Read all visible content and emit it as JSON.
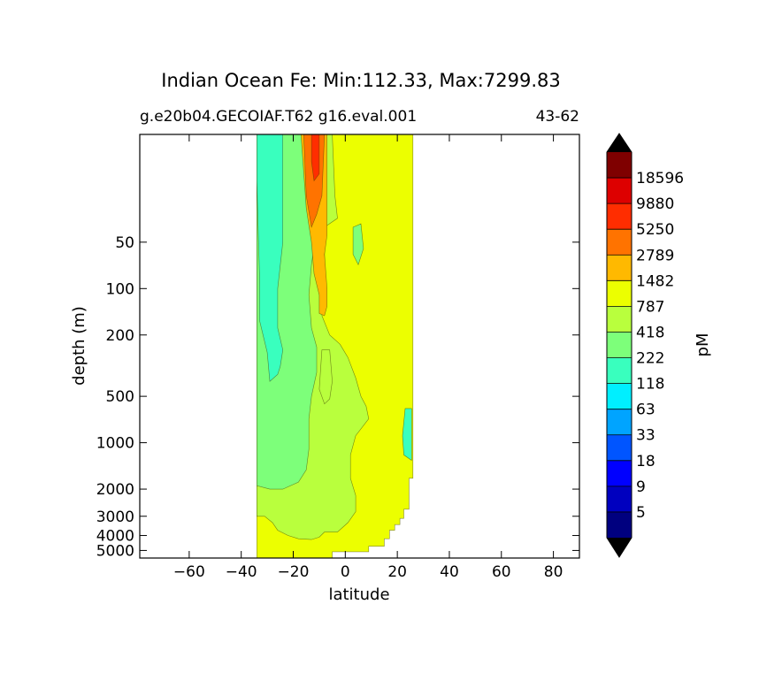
{
  "chart_data": {
    "type": "filled-contour",
    "title": "Indian Ocean Fe: Min:112.33, Max:7299.83",
    "subtitle_left": "g.e20b04.GECOIAF.T62 g16.eval.001",
    "subtitle_right": "43-62",
    "xlabel": "latitude",
    "ylabel": "depth (m)",
    "xlim": [
      -79,
      90
    ],
    "ylim": [
      5600,
      10
    ],
    "x_ticks": [
      {
        "value": -60,
        "label": "−60"
      },
      {
        "value": -40,
        "label": "−40"
      },
      {
        "value": -20,
        "label": "−20"
      },
      {
        "value": 0,
        "label": "0"
      },
      {
        "value": 20,
        "label": "20"
      },
      {
        "value": 40,
        "label": "40"
      },
      {
        "value": 60,
        "label": "60"
      },
      {
        "value": 80,
        "label": "80"
      }
    ],
    "y_ticks": [
      {
        "value": 50,
        "label": "50"
      },
      {
        "value": 100,
        "label": "100"
      },
      {
        "value": 200,
        "label": "200"
      },
      {
        "value": 500,
        "label": "500"
      },
      {
        "value": 1000,
        "label": "1000"
      },
      {
        "value": 2000,
        "label": "2000"
      },
      {
        "value": 3000,
        "label": "3000"
      },
      {
        "value": 4000,
        "label": "4000"
      },
      {
        "value": 5000,
        "label": "5000"
      }
    ],
    "colorbar": {
      "label": "pM",
      "levels": [
        5,
        9,
        18,
        33,
        63,
        118,
        222,
        418,
        787,
        1482,
        2789,
        5250,
        9880,
        18596
      ],
      "colors": [
        "#00007f",
        "#0000bf",
        "#0000ff",
        "#0055ff",
        "#00a4ff",
        "#00efff",
        "#39ffbe",
        "#7dff7a",
        "#b9ff3d",
        "#ecff00",
        "#ffb900",
        "#ff7300",
        "#ff2d00",
        "#dd0000",
        "#7f0000"
      ],
      "under_color": "#000000",
      "over_color": "#000000"
    },
    "regions": [
      {
        "name": "yellow-787-1482",
        "color_index": 9,
        "poly": [
          [
            -34,
            10
          ],
          [
            26,
            10
          ],
          [
            26,
            1700
          ],
          [
            24.5,
            1700
          ],
          [
            24.5,
            2700
          ],
          [
            22.5,
            2700
          ],
          [
            22.5,
            3100
          ],
          [
            21,
            3100
          ],
          [
            21,
            3400
          ],
          [
            19,
            3400
          ],
          [
            19,
            3700
          ],
          [
            17,
            3700
          ],
          [
            17,
            4200
          ],
          [
            15,
            4200
          ],
          [
            15,
            4700
          ],
          [
            9,
            4700
          ],
          [
            9,
            5100
          ],
          [
            -5,
            5100
          ],
          [
            -5,
            5600
          ],
          [
            -34,
            5600
          ]
        ]
      },
      {
        "name": "lightgreen-418-787",
        "color_index": 8,
        "poly": [
          [
            -34,
            10
          ],
          [
            -5,
            10
          ],
          [
            -4,
            25
          ],
          [
            -3,
            35
          ],
          [
            -8,
            40
          ],
          [
            -8,
            90
          ],
          [
            -9,
            150
          ],
          [
            -6,
            200
          ],
          [
            -2,
            230
          ],
          [
            1,
            280
          ],
          [
            4,
            380
          ],
          [
            6,
            500
          ],
          [
            8,
            580
          ],
          [
            9,
            700
          ],
          [
            4,
            900
          ],
          [
            2,
            1200
          ],
          [
            2,
            1700
          ],
          [
            4,
            2200
          ],
          [
            4,
            2800
          ],
          [
            1,
            3300
          ],
          [
            -3,
            3800
          ],
          [
            -8,
            3800
          ],
          [
            -10,
            4100
          ],
          [
            -13,
            4250
          ],
          [
            -18,
            4200
          ],
          [
            -22,
            4000
          ],
          [
            -26,
            3700
          ],
          [
            -28,
            3300
          ],
          [
            -31,
            3000
          ],
          [
            -34,
            3000
          ]
        ]
      },
      {
        "name": "green-222-418",
        "color_index": 7,
        "poly": [
          [
            -34,
            10
          ],
          [
            -12,
            10
          ],
          [
            -11,
            40
          ],
          [
            -13,
            70
          ],
          [
            -14,
            110
          ],
          [
            -13,
            180
          ],
          [
            -11,
            240
          ],
          [
            -11,
            350
          ],
          [
            -13,
            500
          ],
          [
            -14,
            700
          ],
          [
            -14,
            1100
          ],
          [
            -15,
            1500
          ],
          [
            -18,
            1800
          ],
          [
            -24,
            2000
          ],
          [
            -29,
            2000
          ],
          [
            -34,
            1900
          ]
        ]
      },
      {
        "name": "aqua-118-222",
        "color_index": 6,
        "poly": [
          [
            -34,
            10
          ],
          [
            -24,
            10
          ],
          [
            -24,
            50
          ],
          [
            -26,
            100
          ],
          [
            -26,
            180
          ],
          [
            -24,
            250
          ],
          [
            -25,
            320
          ],
          [
            -26,
            360
          ],
          [
            -29,
            400
          ],
          [
            -30,
            260
          ],
          [
            -33,
            160
          ],
          [
            -33,
            80
          ],
          [
            -34,
            20
          ]
        ]
      },
      {
        "name": "aqua-east-patch",
        "color_index": 6,
        "poly": [
          [
            23,
            600
          ],
          [
            25.5,
            600
          ],
          [
            25.5,
            1300
          ],
          [
            22.5,
            1200
          ],
          [
            22,
            900
          ]
        ]
      },
      {
        "name": "green-east-patch",
        "color_index": 7,
        "poly": [
          [
            3,
            40
          ],
          [
            6,
            38
          ],
          [
            7,
            55
          ],
          [
            5,
            70
          ],
          [
            3,
            60
          ]
        ]
      },
      {
        "name": "green-plume-1",
        "color_index": 8,
        "poly": [
          [
            -9,
            250
          ],
          [
            -6,
            250
          ],
          [
            -5,
            400
          ],
          [
            -6,
            520
          ],
          [
            -8,
            560
          ],
          [
            -10,
            450
          ]
        ]
      },
      {
        "name": "orange-1482-2789",
        "color_index": 10,
        "poly": [
          [
            -17,
            10
          ],
          [
            -7,
            10
          ],
          [
            -7,
            45
          ],
          [
            -8,
            60
          ],
          [
            -7,
            100
          ],
          [
            -7,
            130
          ],
          [
            -8,
            150
          ],
          [
            -10,
            145
          ],
          [
            -10,
            110
          ],
          [
            -12,
            80
          ],
          [
            -13,
            50
          ],
          [
            -15,
            30
          ]
        ]
      },
      {
        "name": "darkorange-2789-5250",
        "color_index": 11,
        "poly": [
          [
            -16,
            10
          ],
          [
            -8,
            10
          ],
          [
            -9,
            25
          ],
          [
            -11,
            33
          ],
          [
            -13,
            40
          ],
          [
            -15,
            25
          ]
        ]
      },
      {
        "name": "red-5250-9880",
        "color_index": 12,
        "poly": [
          [
            -13,
            10
          ],
          [
            -10,
            10
          ],
          [
            -10,
            18
          ],
          [
            -12,
            20
          ],
          [
            -13,
            15
          ]
        ]
      }
    ]
  }
}
